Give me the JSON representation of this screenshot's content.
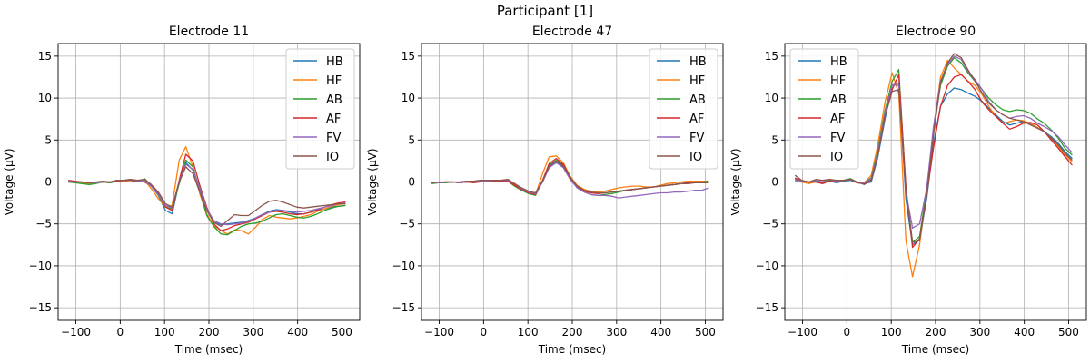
{
  "suptitle": "Participant [1]",
  "chart_data": [
    {
      "type": "line",
      "title": "Electrode 11",
      "xlabel": "Time (msec)",
      "ylabel": "Voltage (µV)",
      "xlim": [
        -140,
        540
      ],
      "ylim": [
        -16.5,
        16.5
      ],
      "xticks": [
        -100,
        0,
        100,
        200,
        300,
        400,
        500
      ],
      "yticks": [
        -15,
        -10,
        -5,
        0,
        5,
        10,
        15
      ],
      "grid": true,
      "legend": "top-right",
      "x": [
        -117,
        -102,
        -86,
        -70,
        -55,
        -39,
        -23,
        -8,
        8,
        23,
        39,
        55,
        70,
        86,
        102,
        117,
        133,
        148,
        164,
        180,
        195,
        211,
        227,
        242,
        258,
        273,
        289,
        305,
        320,
        336,
        352,
        367,
        383,
        398,
        414,
        430,
        445,
        461,
        477,
        492,
        508
      ],
      "series": [
        {
          "name": "HB",
          "color": "#1f77b4",
          "values": [
            0.0,
            0.0,
            -0.1,
            -0.1,
            -0.1,
            0.0,
            -0.1,
            0.1,
            0.1,
            0.2,
            0.1,
            0.0,
            -0.5,
            -1.6,
            -3.4,
            -3.8,
            0.0,
            2.3,
            1.4,
            -1.0,
            -3.2,
            -4.8,
            -5.1,
            -5.0,
            -4.9,
            -4.8,
            -4.6,
            -4.3,
            -3.9,
            -3.5,
            -3.3,
            -3.4,
            -3.6,
            -3.8,
            -3.8,
            -3.6,
            -3.4,
            -3.2,
            -3.0,
            -2.9,
            -2.8
          ]
        },
        {
          "name": "HF",
          "color": "#ff7f0e",
          "values": [
            0.1,
            0.0,
            -0.1,
            -0.2,
            -0.1,
            0.0,
            -0.1,
            0.1,
            0.1,
            0.2,
            0.1,
            0.2,
            -0.8,
            -2.0,
            -3.0,
            -2.8,
            2.6,
            4.2,
            1.8,
            -1.5,
            -3.8,
            -5.2,
            -5.8,
            -6.2,
            -5.7,
            -5.8,
            -6.2,
            -5.4,
            -4.5,
            -4.0,
            -4.2,
            -4.3,
            -4.4,
            -4.3,
            -4.1,
            -3.9,
            -3.5,
            -3.2,
            -2.9,
            -2.7,
            -2.6
          ]
        },
        {
          "name": "AB",
          "color": "#2ca02c",
          "values": [
            0.0,
            -0.1,
            -0.2,
            -0.3,
            -0.2,
            0.0,
            -0.1,
            0.1,
            0.2,
            0.2,
            0.0,
            0.4,
            -0.4,
            -1.6,
            -3.0,
            -3.2,
            -0.2,
            2.6,
            1.8,
            -1.2,
            -4.0,
            -5.3,
            -6.2,
            -6.3,
            -5.8,
            -5.3,
            -5.0,
            -4.9,
            -4.7,
            -4.3,
            -3.9,
            -3.8,
            -4.0,
            -4.2,
            -4.3,
            -4.1,
            -3.8,
            -3.4,
            -3.1,
            -2.9,
            -2.8
          ]
        },
        {
          "name": "AF",
          "color": "#d62728",
          "values": [
            0.2,
            0.1,
            0.0,
            -0.1,
            -0.1,
            0.0,
            0.0,
            0.1,
            0.2,
            0.2,
            0.1,
            0.0,
            -0.4,
            -1.4,
            -3.0,
            -3.4,
            0.2,
            3.3,
            2.5,
            -0.5,
            -3.0,
            -5.0,
            -5.8,
            -5.6,
            -5.2,
            -5.0,
            -4.8,
            -4.4,
            -4.0,
            -3.6,
            -3.5,
            -3.6,
            -3.8,
            -3.9,
            -3.8,
            -3.6,
            -3.3,
            -3.0,
            -2.7,
            -2.5,
            -2.4
          ]
        },
        {
          "name": "FV",
          "color": "#9467bd",
          "values": [
            0.1,
            0.0,
            0.0,
            -0.1,
            -0.1,
            0.0,
            0.0,
            0.2,
            0.2,
            0.3,
            0.1,
            0.1,
            -0.5,
            -1.5,
            -2.8,
            -3.1,
            0.1,
            2.1,
            1.5,
            -0.8,
            -3.2,
            -4.6,
            -5.0,
            -5.1,
            -5.0,
            -4.9,
            -4.7,
            -4.3,
            -3.9,
            -3.6,
            -3.4,
            -3.4,
            -3.5,
            -3.6,
            -3.5,
            -3.4,
            -3.2,
            -3.0,
            -2.8,
            -2.6,
            -2.5
          ]
        },
        {
          "name": "IO",
          "color": "#8c564b",
          "values": [
            0.0,
            0.0,
            0.0,
            -0.1,
            0.0,
            0.1,
            0.0,
            0.2,
            0.2,
            0.3,
            0.2,
            0.3,
            -0.3,
            -1.2,
            -2.6,
            -3.0,
            0.0,
            1.8,
            1.0,
            -1.3,
            -3.4,
            -4.8,
            -5.3,
            -4.6,
            -3.9,
            -4.0,
            -4.0,
            -3.4,
            -2.8,
            -2.3,
            -2.2,
            -2.4,
            -2.7,
            -3.0,
            -3.1,
            -3.0,
            -2.9,
            -2.8,
            -2.7,
            -2.6,
            -2.6
          ]
        }
      ]
    },
    {
      "type": "line",
      "title": "Electrode 47",
      "xlabel": "Time (msec)",
      "ylabel": "Voltage (µV)",
      "xlim": [
        -140,
        540
      ],
      "ylim": [
        -16.5,
        16.5
      ],
      "xticks": [
        -100,
        0,
        100,
        200,
        300,
        400,
        500
      ],
      "yticks": [
        -15,
        -10,
        -5,
        0,
        5,
        10,
        15
      ],
      "grid": true,
      "legend": "top-right",
      "x": [
        -117,
        -102,
        -86,
        -70,
        -55,
        -39,
        -23,
        -8,
        8,
        23,
        39,
        55,
        70,
        86,
        102,
        117,
        133,
        148,
        164,
        180,
        195,
        211,
        227,
        242,
        258,
        273,
        289,
        305,
        320,
        336,
        352,
        367,
        383,
        398,
        414,
        430,
        445,
        461,
        477,
        492,
        508
      ],
      "series": [
        {
          "name": "HB",
          "color": "#1f77b4",
          "values": [
            -0.1,
            -0.1,
            0.0,
            0.0,
            -0.1,
            0.0,
            0.0,
            0.1,
            0.1,
            0.2,
            0.2,
            0.2,
            -0.3,
            -0.8,
            -1.2,
            -1.4,
            0.0,
            1.8,
            2.4,
            1.8,
            0.5,
            -0.5,
            -1.0,
            -1.2,
            -1.3,
            -1.3,
            -1.2,
            -1.1,
            -1.0,
            -0.9,
            -0.8,
            -0.7,
            -0.6,
            -0.5,
            -0.4,
            -0.3,
            -0.2,
            -0.1,
            0.0,
            0.0,
            0.0
          ]
        },
        {
          "name": "HF",
          "color": "#ff7f0e",
          "values": [
            -0.1,
            -0.1,
            0.0,
            0.0,
            -0.1,
            0.0,
            0.0,
            0.1,
            0.1,
            0.2,
            0.2,
            0.3,
            -0.3,
            -0.9,
            -1.3,
            -1.5,
            1.0,
            3.0,
            3.1,
            2.3,
            0.7,
            -0.4,
            -0.9,
            -1.1,
            -1.2,
            -1.1,
            -0.9,
            -0.7,
            -0.6,
            -0.5,
            -0.5,
            -0.6,
            -0.6,
            -0.4,
            -0.2,
            -0.1,
            0.0,
            0.1,
            0.1,
            0.1,
            0.1
          ]
        },
        {
          "name": "AB",
          "color": "#2ca02c",
          "values": [
            -0.2,
            -0.1,
            -0.1,
            0.0,
            -0.1,
            0.0,
            0.0,
            0.1,
            0.1,
            0.2,
            0.1,
            0.1,
            -0.5,
            -1.0,
            -1.4,
            -1.6,
            0.1,
            2.0,
            2.6,
            2.0,
            0.5,
            -0.7,
            -1.2,
            -1.5,
            -1.6,
            -1.5,
            -1.4,
            -1.2,
            -1.0,
            -0.9,
            -0.8,
            -0.7,
            -0.6,
            -0.5,
            -0.4,
            -0.3,
            -0.2,
            -0.1,
            0.0,
            0.0,
            0.1
          ]
        },
        {
          "name": "AF",
          "color": "#d62728",
          "values": [
            -0.1,
            -0.1,
            0.0,
            0.0,
            -0.1,
            0.0,
            -0.1,
            0.0,
            0.1,
            0.1,
            0.1,
            0.1,
            -0.4,
            -0.9,
            -1.3,
            -1.5,
            0.2,
            2.2,
            2.8,
            2.1,
            0.6,
            -0.6,
            -1.1,
            -1.3,
            -1.4,
            -1.3,
            -1.2,
            -1.1,
            -1.0,
            -0.9,
            -0.8,
            -0.7,
            -0.6,
            -0.5,
            -0.4,
            -0.3,
            -0.2,
            -0.1,
            0.0,
            0.0,
            0.0
          ]
        },
        {
          "name": "FV",
          "color": "#9467bd",
          "values": [
            -0.1,
            -0.1,
            0.0,
            0.0,
            -0.1,
            0.0,
            0.0,
            0.1,
            0.1,
            0.2,
            0.2,
            0.2,
            -0.2,
            -0.8,
            -1.2,
            -1.4,
            0.0,
            1.7,
            2.3,
            1.7,
            0.3,
            -0.7,
            -1.2,
            -1.5,
            -1.6,
            -1.6,
            -1.7,
            -1.9,
            -1.8,
            -1.7,
            -1.6,
            -1.5,
            -1.4,
            -1.3,
            -1.3,
            -1.2,
            -1.2,
            -1.1,
            -1.0,
            -1.0,
            -0.7
          ]
        },
        {
          "name": "IO",
          "color": "#8c564b",
          "values": [
            -0.1,
            0.0,
            0.0,
            0.0,
            0.0,
            0.1,
            0.1,
            0.2,
            0.2,
            0.2,
            0.2,
            0.3,
            -0.2,
            -0.7,
            -1.1,
            -1.3,
            0.1,
            1.9,
            2.5,
            1.9,
            0.6,
            -0.5,
            -1.0,
            -1.2,
            -1.3,
            -1.3,
            -1.2,
            -1.1,
            -1.0,
            -0.9,
            -0.8,
            -0.7,
            -0.6,
            -0.5,
            -0.4,
            -0.3,
            -0.2,
            -0.2,
            -0.1,
            -0.1,
            -0.1
          ]
        }
      ]
    },
    {
      "type": "line",
      "title": "Electrode 90",
      "xlabel": "Time (msec)",
      "ylabel": "Voltage (µV)",
      "xlim": [
        -140,
        540
      ],
      "ylim": [
        -16.5,
        16.5
      ],
      "xticks": [
        -100,
        0,
        100,
        200,
        300,
        400,
        500
      ],
      "yticks": [
        -15,
        -10,
        -5,
        0,
        5,
        10,
        15
      ],
      "grid": true,
      "legend": "top-left",
      "x": [
        -117,
        -102,
        -86,
        -70,
        -55,
        -39,
        -23,
        -8,
        8,
        23,
        39,
        55,
        70,
        86,
        102,
        117,
        133,
        148,
        164,
        180,
        195,
        211,
        227,
        242,
        258,
        273,
        289,
        305,
        320,
        336,
        352,
        367,
        383,
        398,
        414,
        430,
        445,
        461,
        477,
        492,
        508
      ],
      "series": [
        {
          "name": "HB",
          "color": "#1f77b4",
          "values": [
            0.2,
            0.0,
            -0.1,
            0.0,
            -0.2,
            0.1,
            -0.1,
            0.1,
            0.2,
            -0.1,
            -0.2,
            0.0,
            3.0,
            7.5,
            11.5,
            11.8,
            -2.0,
            -7.5,
            -6.8,
            -2.0,
            4.5,
            9.0,
            10.5,
            11.2,
            11.0,
            10.6,
            10.2,
            9.6,
            8.8,
            8.0,
            7.2,
            6.8,
            7.0,
            7.2,
            6.9,
            6.4,
            6.0,
            5.4,
            4.6,
            3.6,
            2.8
          ]
        },
        {
          "name": "HF",
          "color": "#ff7f0e",
          "values": [
            0.3,
            0.0,
            -0.2,
            0.0,
            -0.1,
            0.1,
            0.0,
            0.2,
            0.3,
            0.0,
            -0.1,
            0.8,
            4.5,
            9.5,
            13.0,
            10.5,
            -7.0,
            -11.3,
            -7.5,
            -1.0,
            6.0,
            12.5,
            14.5,
            13.6,
            12.8,
            12.0,
            11.5,
            10.4,
            9.0,
            7.8,
            7.0,
            7.2,
            7.4,
            7.3,
            7.0,
            6.5,
            6.0,
            5.2,
            4.2,
            3.2,
            2.4
          ]
        },
        {
          "name": "AB",
          "color": "#2ca02c",
          "values": [
            0.4,
            0.2,
            0.0,
            0.1,
            -0.1,
            0.2,
            0.1,
            0.2,
            0.4,
            0.0,
            -0.1,
            0.5,
            3.8,
            8.5,
            12.0,
            13.4,
            -0.8,
            -7.2,
            -6.5,
            -1.0,
            6.0,
            11.5,
            13.8,
            14.8,
            14.2,
            13.0,
            12.0,
            11.0,
            10.0,
            9.2,
            8.6,
            8.4,
            8.6,
            8.5,
            8.2,
            7.5,
            7.0,
            6.2,
            5.2,
            4.0,
            3.2
          ]
        },
        {
          "name": "AF",
          "color": "#d62728",
          "values": [
            0.5,
            0.1,
            0.0,
            0.0,
            -0.2,
            0.1,
            0.0,
            0.2,
            0.3,
            -0.1,
            -0.2,
            0.3,
            3.5,
            8.0,
            11.0,
            12.8,
            -0.5,
            -7.8,
            -6.8,
            -1.5,
            4.0,
            9.0,
            11.5,
            12.5,
            12.8,
            12.0,
            11.0,
            9.5,
            8.6,
            7.8,
            7.0,
            6.3,
            6.6,
            7.0,
            7.1,
            6.8,
            6.0,
            5.0,
            4.0,
            3.0,
            2.0
          ]
        },
        {
          "name": "FV",
          "color": "#9467bd",
          "values": [
            0.3,
            0.1,
            0.0,
            0.2,
            0.0,
            0.3,
            0.1,
            0.2,
            0.3,
            0.0,
            -0.1,
            0.4,
            3.5,
            8.2,
            11.6,
            11.5,
            -1.2,
            -5.5,
            -5.0,
            -0.8,
            6.5,
            12.0,
            14.0,
            15.0,
            14.6,
            13.2,
            12.2,
            11.0,
            9.6,
            8.6,
            8.0,
            7.6,
            7.8,
            7.9,
            7.6,
            7.0,
            6.6,
            6.1,
            5.4,
            4.4,
            3.5
          ]
        },
        {
          "name": "IO",
          "color": "#8c564b",
          "values": [
            0.8,
            0.2,
            0.0,
            0.3,
            0.2,
            0.3,
            0.2,
            0.2,
            0.3,
            0.0,
            -0.3,
            0.2,
            3.2,
            7.8,
            10.8,
            11.0,
            -1.0,
            -7.2,
            -7.0,
            -1.6,
            5.5,
            11.8,
            14.2,
            15.3,
            14.8,
            13.4,
            12.0,
            10.6,
            9.4,
            8.6,
            8.0,
            7.6,
            7.4,
            7.2,
            6.8,
            6.4,
            6.0,
            5.2,
            4.4,
            3.4,
            2.6
          ]
        }
      ]
    }
  ]
}
